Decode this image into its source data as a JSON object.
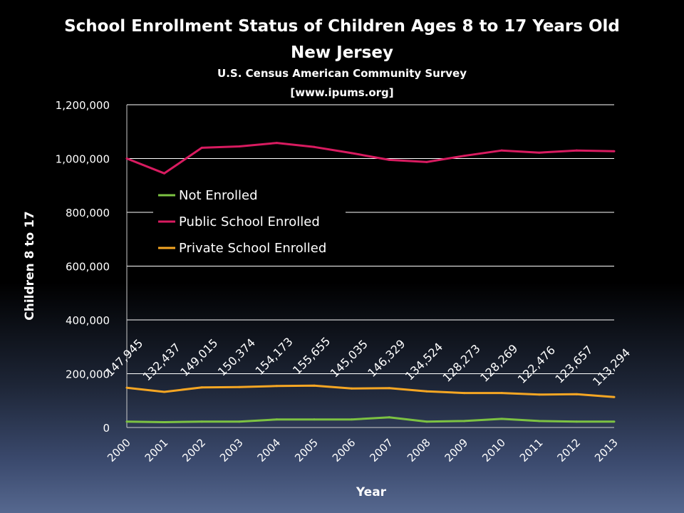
{
  "chart_data": {
    "type": "line",
    "title": "School Enrollment Status of Children Ages 8 to 17 Years Old",
    "subtitle": "New Jersey",
    "source": "U.S. Census American Community Survey",
    "source_url": "[www.ipums.org]",
    "xlabel": "Year",
    "ylabel": "Children 8 to 17",
    "ylim": [
      0,
      1200000
    ],
    "yticks": [
      "0",
      "200,000",
      "400,000",
      "600,000",
      "800,000",
      "1,000,000",
      "1,200,000"
    ],
    "grid": true,
    "legend_position": "upper-left",
    "categories": [
      "2000",
      "2001",
      "2002",
      "2003",
      "2004",
      "2005",
      "2006",
      "2007",
      "2008",
      "2009",
      "2010",
      "2011",
      "2012",
      "2013"
    ],
    "series": [
      {
        "name": "Not Enrolled",
        "color": "#7cc242",
        "values": [
          22000,
          20000,
          22000,
          22000,
          30000,
          30000,
          30000,
          38000,
          22000,
          24000,
          32000,
          24000,
          22000,
          22000
        ]
      },
      {
        "name": "Public School Enrolled",
        "color": "#d81b60",
        "values": [
          1000000,
          945000,
          1040000,
          1045000,
          1058000,
          1043000,
          1020000,
          995000,
          987000,
          1010000,
          1030000,
          1022000,
          1030000,
          1027000
        ]
      },
      {
        "name": "Private School Enrolled",
        "color": "#f5a623",
        "values": [
          147945,
          132437,
          149015,
          150374,
          154173,
          155655,
          145035,
          146329,
          134524,
          128273,
          128269,
          122476,
          123657,
          113294
        ]
      }
    ],
    "data_labels": [
      "147,945",
      "132,437",
      "149,015",
      "150,374",
      "154,173",
      "155,655",
      "145,035",
      "146,329",
      "134,524",
      "128,273",
      "128,269",
      "122,476",
      "123,657",
      "113,294"
    ]
  }
}
